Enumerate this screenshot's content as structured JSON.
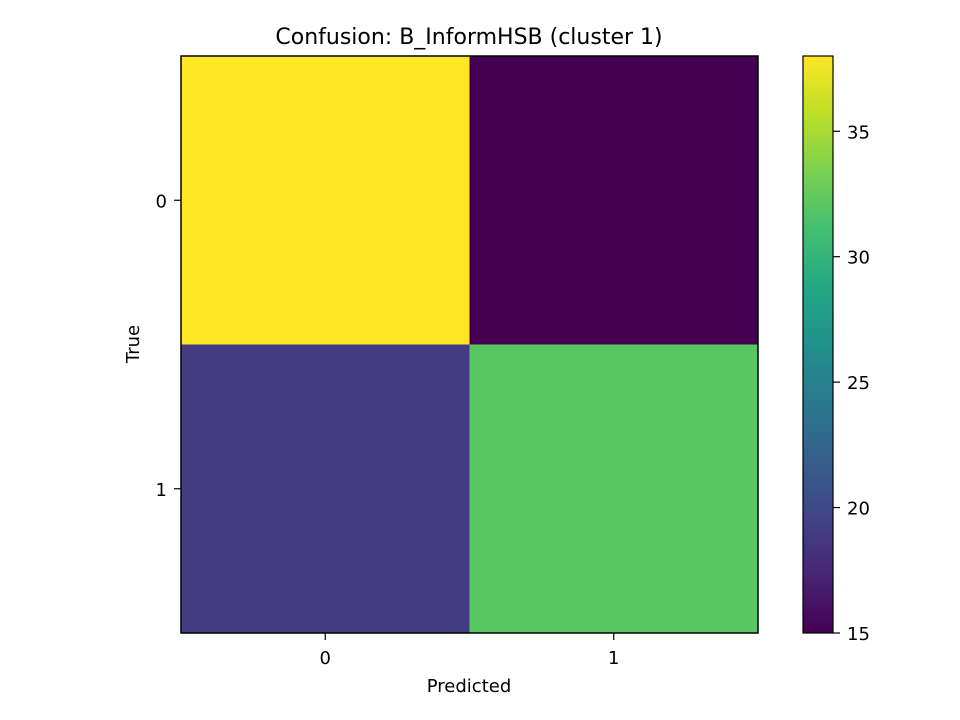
{
  "chart_data": {
    "type": "heatmap",
    "title": "Confusion: B_InformHSB (cluster 1)",
    "xlabel": "Predicted",
    "ylabel": "True",
    "x_categories": [
      "0",
      "1"
    ],
    "y_categories": [
      "0",
      "1"
    ],
    "values": [
      [
        38,
        15
      ],
      [
        19,
        32
      ]
    ],
    "colormap": "viridis",
    "colorbar": {
      "min": 15,
      "max": 38,
      "ticks": [
        15,
        20,
        25,
        30,
        35
      ],
      "tick_labels": [
        "15",
        "20",
        "25",
        "30",
        "35"
      ]
    }
  }
}
